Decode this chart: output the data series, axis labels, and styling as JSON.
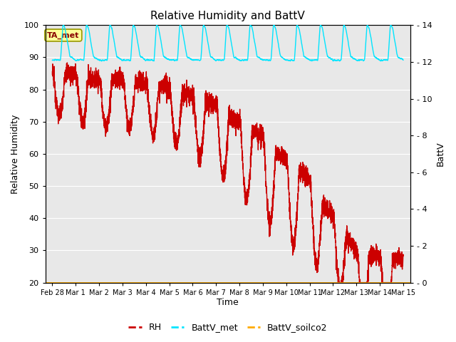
{
  "title": "Relative Humidity and BattV",
  "xlabel": "Time",
  "ylabel_left": "Relative Humidity",
  "ylabel_right": "BattV",
  "ylim_left": [
    20,
    100
  ],
  "ylim_right": [
    0,
    14
  ],
  "background_color": "#ffffff",
  "plot_bg_color": "#e8e8e8",
  "grid_color": "#ffffff",
  "legend_box_label": "TA_met",
  "legend_box_color": "#ffff99",
  "legend_box_edge": "#999900",
  "series_RH_color": "#cc0000",
  "series_RH_linewidth": 1.0,
  "series_batt_met_color": "#00e5ff",
  "series_batt_met_linewidth": 1.0,
  "series_batt_soilco2_color": "#ffaa00",
  "series_batt_soilco2_linewidth": 2.0,
  "xlim": [
    -0.3,
    15.3
  ],
  "yticks_left": [
    20,
    30,
    40,
    50,
    60,
    70,
    80,
    90,
    100
  ],
  "yticks_right": [
    0,
    2,
    4,
    6,
    8,
    10,
    12,
    14
  ],
  "xtick_labels": [
    "Feb 28",
    "Mar 1",
    "Mar 2",
    "Mar 3",
    "Mar 4",
    "Mar 5",
    "Mar 6",
    "Mar 7",
    "Mar 8",
    "Mar 9",
    "Mar 10",
    "Mar 11",
    "Mar 12",
    "Mar 13",
    "Mar 14",
    "Mar 15"
  ],
  "xtick_positions": [
    0,
    1,
    2,
    3,
    4,
    5,
    6,
    7,
    8,
    9,
    10,
    11,
    12,
    13,
    14,
    15
  ]
}
